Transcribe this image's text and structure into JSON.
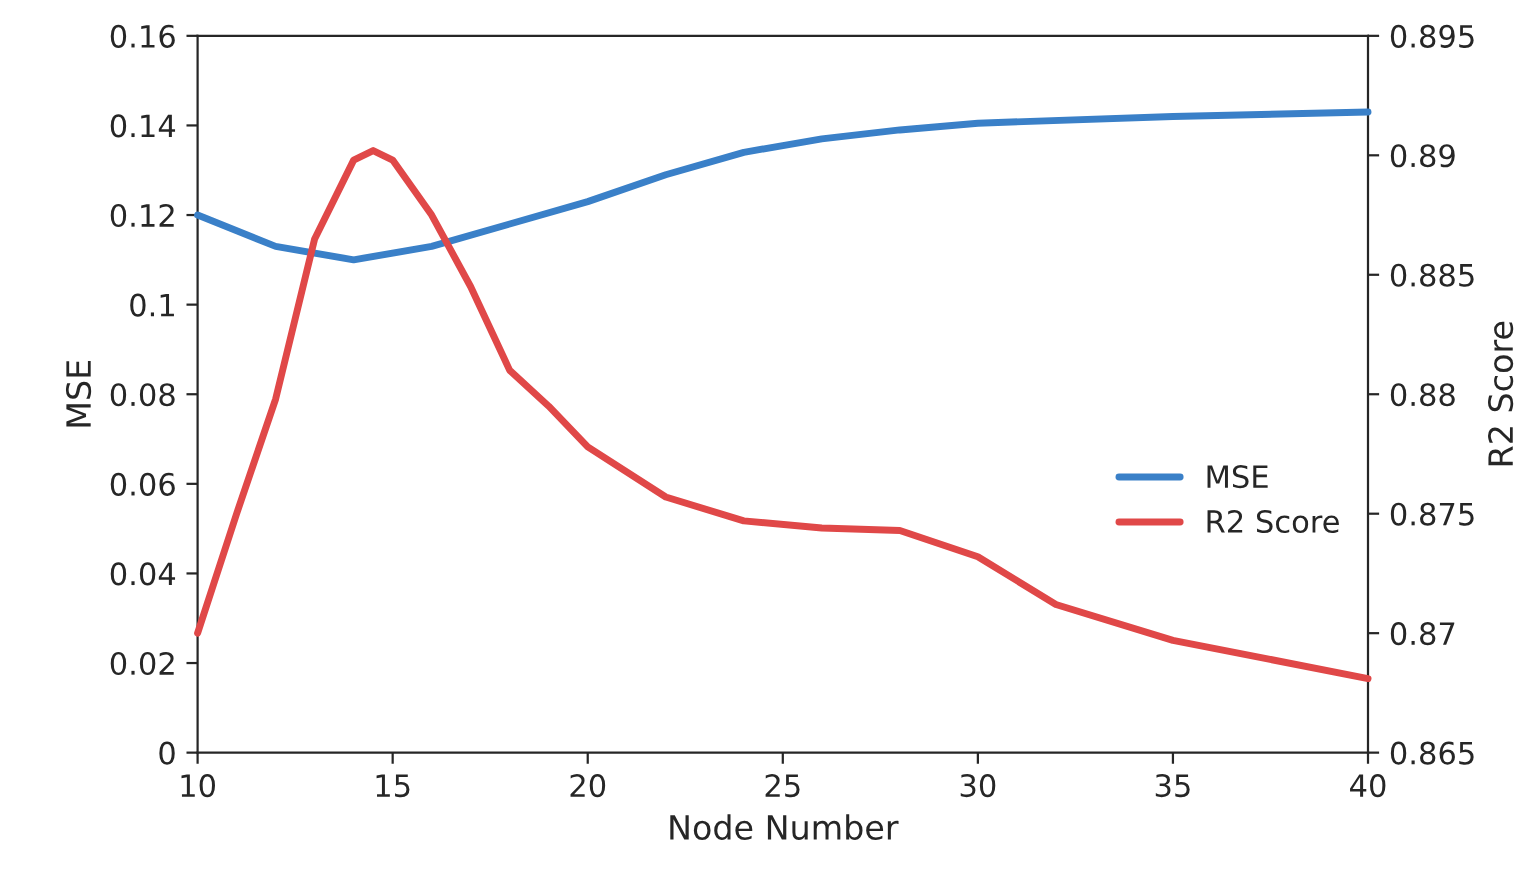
{
  "chart_data": {
    "type": "line",
    "xlabel": "Node Number",
    "ylabel": "MSE",
    "y2label": "R2 Score",
    "xlim": [
      10,
      40
    ],
    "xticks": [
      10,
      15,
      20,
      25,
      30,
      35,
      40
    ],
    "ylim": [
      0,
      0.16
    ],
    "yticks": [
      0,
      0.02,
      0.04,
      0.06,
      0.08,
      0.1,
      0.12,
      0.14,
      0.16
    ],
    "y2lim": [
      0.865,
      0.895
    ],
    "y2ticks": [
      0.865,
      0.87,
      0.875,
      0.88,
      0.885,
      0.89,
      0.895
    ],
    "grid": false,
    "legend": "right",
    "marker": "none",
    "line_style": "solid",
    "series": [
      {
        "name": "MSE",
        "color": "#3a80c8",
        "x": [
          10,
          12,
          14,
          16,
          18,
          20,
          22,
          24,
          26,
          28,
          30,
          35,
          40
        ],
        "values": [
          0.12,
          0.113,
          0.11,
          0.113,
          0.118,
          0.123,
          0.129,
          0.134,
          0.137,
          0.139,
          0.1405,
          0.142,
          0.143
        ]
      },
      {
        "name": "R2 Score",
        "color": "#e04848",
        "axis": "y2",
        "x": [
          10,
          11,
          12,
          13,
          14,
          14.5,
          15,
          16,
          17,
          18,
          19,
          20,
          22,
          24,
          26,
          28,
          30,
          32,
          35,
          40
        ],
        "values": [
          0.87,
          0.875,
          0.8798,
          0.8865,
          0.8898,
          0.8902,
          0.8898,
          0.8875,
          0.8845,
          0.881,
          0.8795,
          0.8778,
          0.8757,
          0.8747,
          0.8744,
          0.8743,
          0.8732,
          0.8712,
          0.8697,
          0.8681
        ]
      }
    ]
  }
}
